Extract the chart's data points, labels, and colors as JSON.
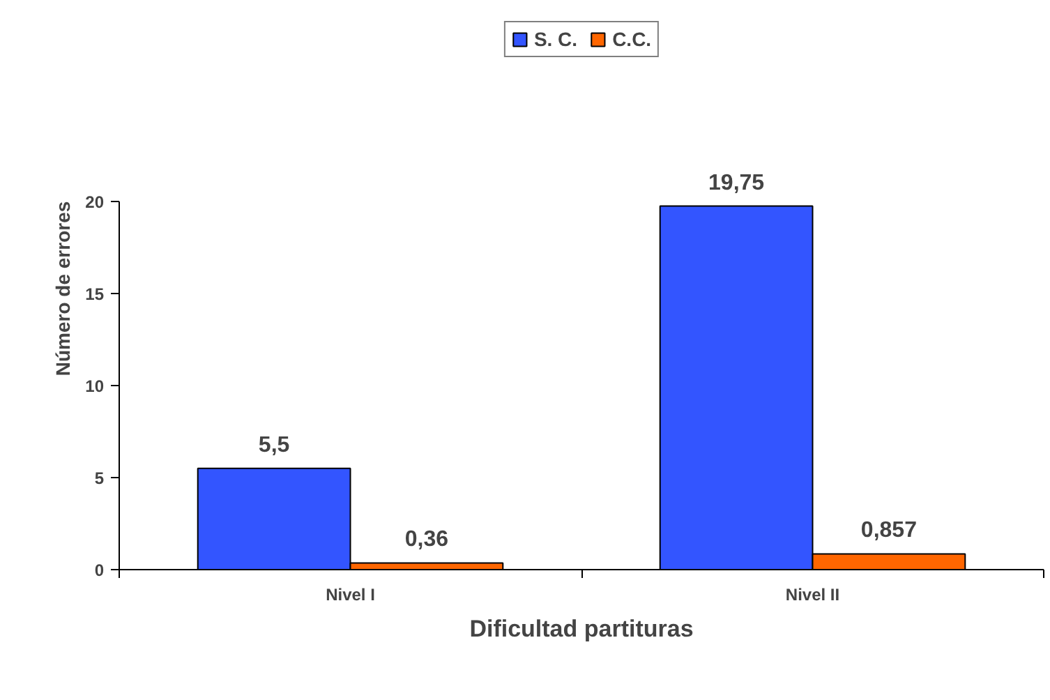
{
  "chart_data": {
    "type": "bar",
    "categories": [
      "Nivel I",
      "Nivel II"
    ],
    "series": [
      {
        "name": "S. C.",
        "color": "#3355ff",
        "values": [
          5.5,
          19.75
        ],
        "value_labels": [
          "5,5",
          "19,75"
        ]
      },
      {
        "name": "C.C.",
        "color": "#ff6600",
        "values": [
          0.36,
          0.857
        ],
        "value_labels": [
          "0,36",
          "0,857"
        ]
      }
    ],
    "xlabel": "Dificultad partituras",
    "ylabel": "Número de errores",
    "ylim": [
      0,
      20
    ],
    "yticks": [
      0,
      5,
      10,
      15,
      20
    ],
    "grid": false,
    "legend": "top"
  }
}
